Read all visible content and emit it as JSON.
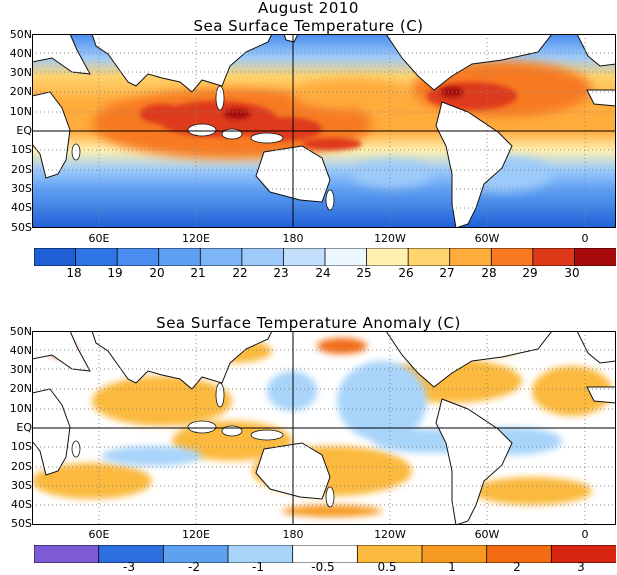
{
  "header": {
    "date_title": "August 2010"
  },
  "maps": [
    {
      "id": "sst",
      "title": "Sea Surface Temperature (C)",
      "lat_labels": [
        "50N",
        "40N",
        "30N",
        "20N",
        "10N",
        "EQ",
        "10S",
        "20S",
        "30S",
        "40S",
        "50S"
      ],
      "lon_labels": [
        "60E",
        "120E",
        "180",
        "120W",
        "60W",
        "0"
      ],
      "colorbar": {
        "labels": [
          "18",
          "19",
          "20",
          "21",
          "22",
          "23",
          "24",
          "25",
          "26",
          "27",
          "28",
          "29",
          "30"
        ],
        "colors": [
          "#1f5fd6",
          "#2f75e6",
          "#4a8cef",
          "#5fa0f4",
          "#7db5f7",
          "#9dcaf9",
          "#c2e0fb",
          "#ecf7ff",
          "#fff0b0",
          "#ffd36e",
          "#ffac3c",
          "#f77a22",
          "#de3a1a",
          "#a80b0b"
        ]
      }
    },
    {
      "id": "anomaly",
      "title": "Sea Surface Temperature Anomaly (C)",
      "lat_labels": [
        "50N",
        "40N",
        "30N",
        "20N",
        "10N",
        "EQ",
        "10S",
        "20S",
        "30S",
        "40S",
        "50S"
      ],
      "lon_labels": [
        "60E",
        "120E",
        "180",
        "120W",
        "60W",
        "0"
      ],
      "colorbar": {
        "labels": [
          "-3",
          "-2",
          "-1",
          "-0.5",
          "0.5",
          "1",
          "2",
          "3"
        ],
        "colors": [
          "#7d5ad6",
          "#2e6fe0",
          "#5ea2ef",
          "#a8d4fa",
          "#ffffff",
          "#fbb93e",
          "#f79a23",
          "#f36c12",
          "#d82511"
        ]
      }
    }
  ]
}
